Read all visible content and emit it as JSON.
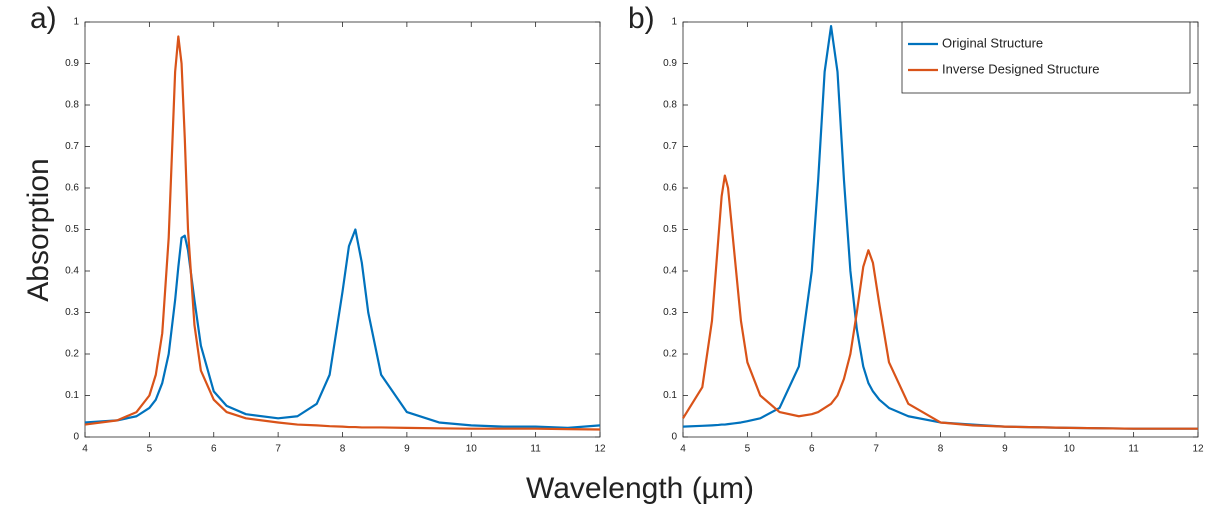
{
  "labels": {
    "ylabel": "Absorption",
    "xlabel": "Wavelength (µm)"
  },
  "chart_data": [
    {
      "type": "line",
      "label": "a)",
      "x": [
        4,
        4.5,
        4.8,
        5,
        5.1,
        5.2,
        5.3,
        5.4,
        5.45,
        5.5,
        5.55,
        5.6,
        5.7,
        5.8,
        6,
        6.2,
        6.5,
        7,
        7.3,
        7.6,
        7.8,
        8,
        8.1,
        8.2,
        8.3,
        8.4,
        8.6,
        9,
        9.5,
        10,
        10.5,
        11,
        11.5,
        12
      ],
      "series": [
        {
          "color": "#0072bd",
          "values": [
            0.035,
            0.04,
            0.05,
            0.07,
            0.09,
            0.13,
            0.2,
            0.33,
            0.41,
            0.48,
            0.485,
            0.45,
            0.33,
            0.22,
            0.11,
            0.075,
            0.055,
            0.045,
            0.05,
            0.08,
            0.15,
            0.35,
            0.46,
            0.5,
            0.42,
            0.3,
            0.15,
            0.06,
            0.035,
            0.028,
            0.025,
            0.025,
            0.022,
            0.028
          ]
        },
        {
          "color": "#d95319",
          "values": [
            0.03,
            0.04,
            0.06,
            0.1,
            0.15,
            0.25,
            0.48,
            0.88,
            0.965,
            0.9,
            0.72,
            0.5,
            0.27,
            0.16,
            0.09,
            0.06,
            0.045,
            0.035,
            0.03,
            0.028,
            0.026,
            0.025,
            0.024,
            0.024,
            0.023,
            0.023,
            0.023,
            0.022,
            0.021,
            0.02,
            0.02,
            0.02,
            0.019,
            0.018
          ]
        }
      ],
      "xlim": [
        4,
        12
      ],
      "xticks": [
        4,
        5,
        6,
        7,
        8,
        9,
        10,
        11,
        12
      ],
      "ylim": [
        0,
        1
      ],
      "yticks": [
        0,
        0.1,
        0.2,
        0.3,
        0.4,
        0.5,
        0.6,
        0.7,
        0.8,
        0.9,
        1
      ]
    },
    {
      "type": "line",
      "label": "b)",
      "x": [
        4,
        4.3,
        4.45,
        4.55,
        4.6,
        4.65,
        4.7,
        4.8,
        4.9,
        5,
        5.2,
        5.5,
        5.8,
        6,
        6.1,
        6.2,
        6.3,
        6.4,
        6.5,
        6.6,
        6.7,
        6.8,
        6.88,
        6.95,
        7.05,
        7.2,
        7.5,
        8,
        8.5,
        9,
        10,
        11,
        12
      ],
      "series": [
        {
          "name": "Original Structure",
          "color": "#0072bd",
          "values": [
            0.025,
            0.027,
            0.028,
            0.029,
            0.03,
            0.03,
            0.031,
            0.033,
            0.035,
            0.038,
            0.045,
            0.07,
            0.17,
            0.4,
            0.62,
            0.88,
            0.99,
            0.88,
            0.62,
            0.4,
            0.26,
            0.17,
            0.13,
            0.11,
            0.09,
            0.07,
            0.05,
            0.035,
            0.03,
            0.025,
            0.022,
            0.02,
            0.02
          ]
        },
        {
          "name": "Inverse Designed Structure",
          "color": "#d95319",
          "values": [
            0.045,
            0.12,
            0.28,
            0.48,
            0.58,
            0.63,
            0.6,
            0.44,
            0.28,
            0.18,
            0.1,
            0.06,
            0.05,
            0.055,
            0.06,
            0.07,
            0.08,
            0.1,
            0.14,
            0.2,
            0.3,
            0.41,
            0.45,
            0.42,
            0.32,
            0.18,
            0.08,
            0.035,
            0.028,
            0.025,
            0.022,
            0.02,
            0.02
          ]
        }
      ],
      "xlim": [
        4,
        12
      ],
      "xticks": [
        4,
        5,
        6,
        7,
        8,
        9,
        10,
        11,
        12
      ],
      "ylim": [
        0,
        1
      ],
      "yticks": [
        0,
        0.1,
        0.2,
        0.3,
        0.4,
        0.5,
        0.6,
        0.7,
        0.8,
        0.9,
        1
      ],
      "legend": "upper right"
    }
  ]
}
